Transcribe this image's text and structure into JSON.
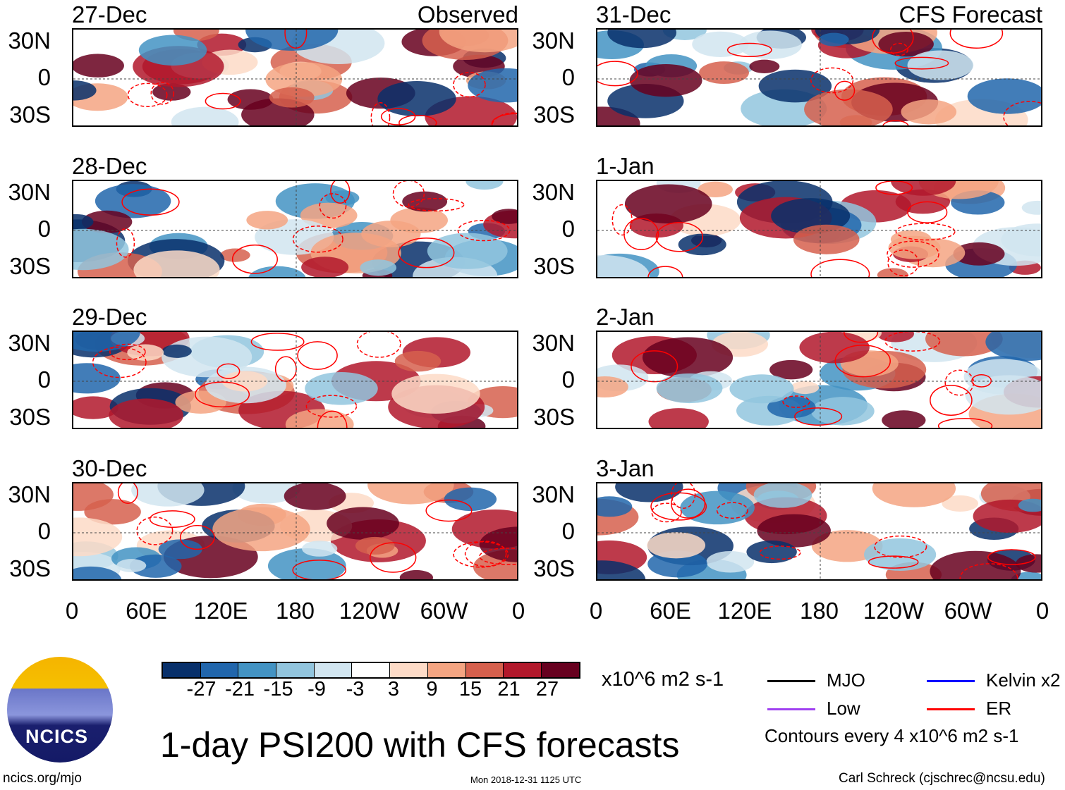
{
  "chart_data": {
    "type": "heatmap",
    "title": "1-day PSI200 with CFS forecasts",
    "left_header": "Observed",
    "right_header": "CFS Forecast",
    "panels_left": [
      "27-Dec",
      "28-Dec",
      "29-Dec",
      "30-Dec"
    ],
    "panels_right": [
      "31-Dec",
      "1-Jan",
      "2-Jan",
      "3-Jan"
    ],
    "y_ticks": [
      "30N",
      "0",
      "30S"
    ],
    "x_ticks": [
      "0",
      "60E",
      "120E",
      "180",
      "120W",
      "60W",
      "0"
    ],
    "colorbar": {
      "levels": [
        "-27",
        "-21",
        "-15",
        "-9",
        "-3",
        "3",
        "9",
        "15",
        "21",
        "27"
      ],
      "colors": [
        "#08306b",
        "#2166ac",
        "#4393c3",
        "#92c5de",
        "#d1e5f0",
        "#ffffff",
        "#fddbc7",
        "#f4a582",
        "#d6604d",
        "#b2182b",
        "#67001f"
      ],
      "units": "x10^6 m2 s-1"
    },
    "legend": [
      {
        "label": "MJO",
        "color": "#000000"
      },
      {
        "label": "Kelvin x2",
        "color": "#0000ff"
      },
      {
        "label": "Low",
        "color": "#a040f0"
      },
      {
        "label": "ER",
        "color": "#ff0000"
      }
    ],
    "contour_note": "Contours every 4 x10^6 m2 s-1"
  },
  "footer": {
    "logo_text": "NCICS",
    "url": "ncics.org/mjo",
    "timestamp": "Mon 2018-12-31 1125 UTC",
    "author": "Carl Schreck (cjschrec@ncsu.edu)"
  }
}
